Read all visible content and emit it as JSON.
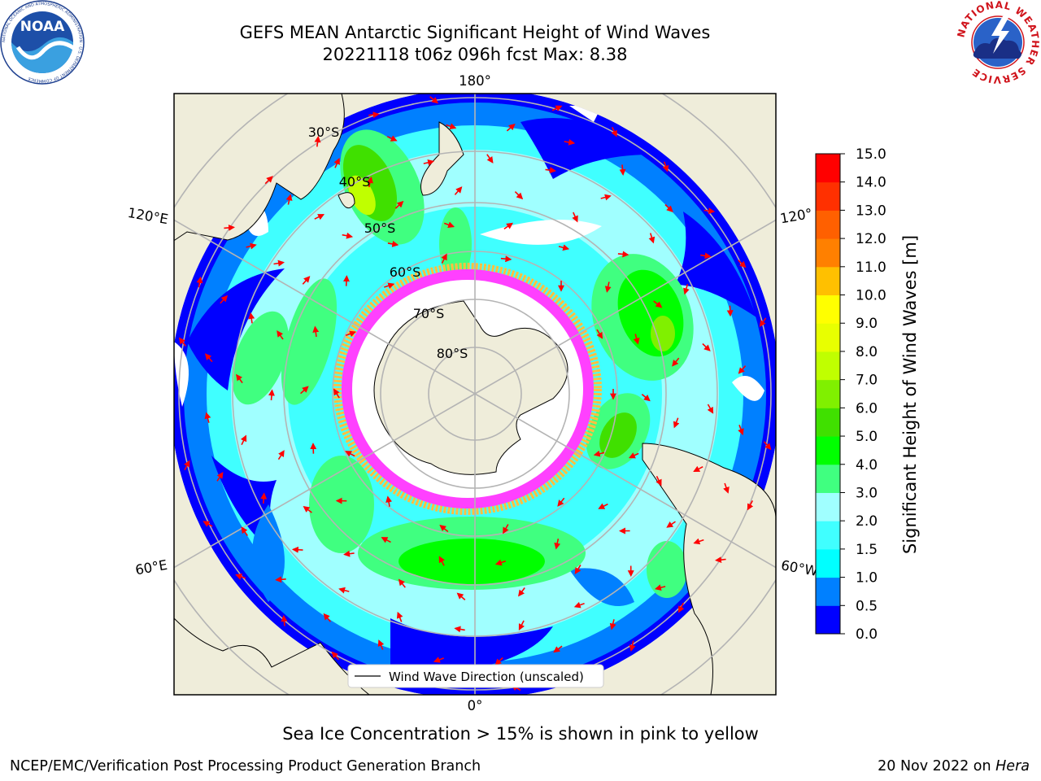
{
  "header": {
    "title_line1": "GEFS MEAN Antarctic Significant Height of Wind Waves",
    "title_line2": "20221118 t06z 096h fcst   Max: 8.38"
  },
  "logos": {
    "left_name": "noaa-logo",
    "left_text": "NOAA",
    "left_ring_text": "NATIONAL OCEANIC AND ATMOSPHERIC ADMINISTRATION · U.S. DEPARTMENT OF COMMERCE",
    "right_name": "national-weather-service-logo",
    "right_ring_text": "NATIONAL WEATHER SERVICE"
  },
  "chart_data": {
    "type": "heatmap",
    "projection": "south-polar-stereographic",
    "title": "GEFS MEAN Antarctic Significant Height of Wind Waves",
    "run": "20221118 t06z 096h fcst",
    "max_value": 8.38,
    "longitude_labels": [
      "180°",
      "120°E",
      "120°",
      "60°E",
      "60°W",
      "0°"
    ],
    "latitude_labels": [
      "30°S",
      "40°S",
      "50°S",
      "60°S",
      "70°S",
      "80°S"
    ],
    "latitudes": [
      -30,
      -40,
      -50,
      -60,
      -70,
      -80
    ],
    "longitudes": [
      0,
      60,
      120,
      180,
      -120,
      -60
    ],
    "legend": {
      "label": "Wind Wave Direction (unscaled)",
      "placement": "lower-center"
    },
    "colorbar": {
      "label": "Significant Height of Wind Waves [m]",
      "ticks": [
        "0.0",
        "0.5",
        "1.0",
        "1.5",
        "2.0",
        "3.0",
        "4.0",
        "5.0",
        "6.0",
        "7.0",
        "8.0",
        "9.0",
        "10.0",
        "11.0",
        "12.0",
        "13.0",
        "14.0",
        "15.0"
      ],
      "colors": [
        "#0000ff",
        "#0080ff",
        "#00ffff",
        "#40ffff",
        "#a0ffff",
        "#40ff80",
        "#00ff00",
        "#40e000",
        "#80f000",
        "#c0ff00",
        "#e8ff00",
        "#ffff00",
        "#ffc000",
        "#ff8000",
        "#ff6000",
        "#ff3000",
        "#ff0000"
      ]
    },
    "colors": {
      "land": "#efedda",
      "sea_ice": "#ffffff",
      "ice_edge": "#ff40ff",
      "arrow": "#ff0000",
      "grid": "#b4b4b4"
    }
  },
  "caption": "Sea Ice Concentration > 15% is shown in pink to yellow",
  "footer": {
    "left": "NCEP/EMC/Verification Post Processing Product Generation Branch",
    "right_prefix": "20 Nov 2022 on ",
    "right_italic": "Hera"
  }
}
